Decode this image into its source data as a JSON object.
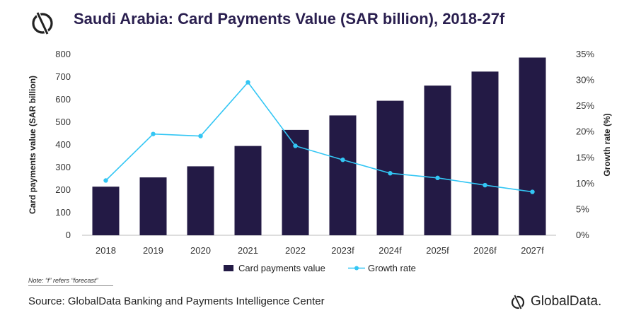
{
  "title": "Saudi Arabia: Card Payments Value (SAR billion), 2018-27f",
  "note": "Note: “f” refers “forecast”",
  "source": "Source: GlobalData Banking and Payments Intelligence Center",
  "brand": "GlobalData.",
  "chart_data": {
    "type": "bar",
    "categories": [
      "2018",
      "2019",
      "2020",
      "2021",
      "2022",
      "2023f",
      "2024f",
      "2025f",
      "2026f",
      "2027f"
    ],
    "series": [
      {
        "name": "Card payments value",
        "type": "bar",
        "axis": "left",
        "color": "#231a45",
        "values": [
          215,
          256,
          305,
          395,
          466,
          530,
          595,
          662,
          724,
          786
        ]
      },
      {
        "name": "Growth rate",
        "type": "line",
        "axis": "right",
        "color": "#33c6f4",
        "values": [
          10.6,
          19.6,
          19.2,
          29.6,
          17.3,
          14.6,
          12.0,
          11.1,
          9.7,
          8.4
        ]
      }
    ],
    "ylabel": "Card payments value (SAR billion)",
    "y2label": "Growth rate (%)",
    "ylim": [
      0,
      800
    ],
    "yticks": [
      "0",
      "100",
      "200",
      "300",
      "400",
      "500",
      "600",
      "700",
      "800"
    ],
    "y2lim": [
      0,
      35
    ],
    "y2ticks": [
      "0%",
      "5%",
      "10%",
      "15%",
      "20%",
      "25%",
      "30%",
      "35%"
    ],
    "grid": false,
    "legend_position": "bottom"
  },
  "colors": {
    "bar": "#231a45",
    "line": "#33c6f4",
    "title": "#2a1f4f"
  }
}
